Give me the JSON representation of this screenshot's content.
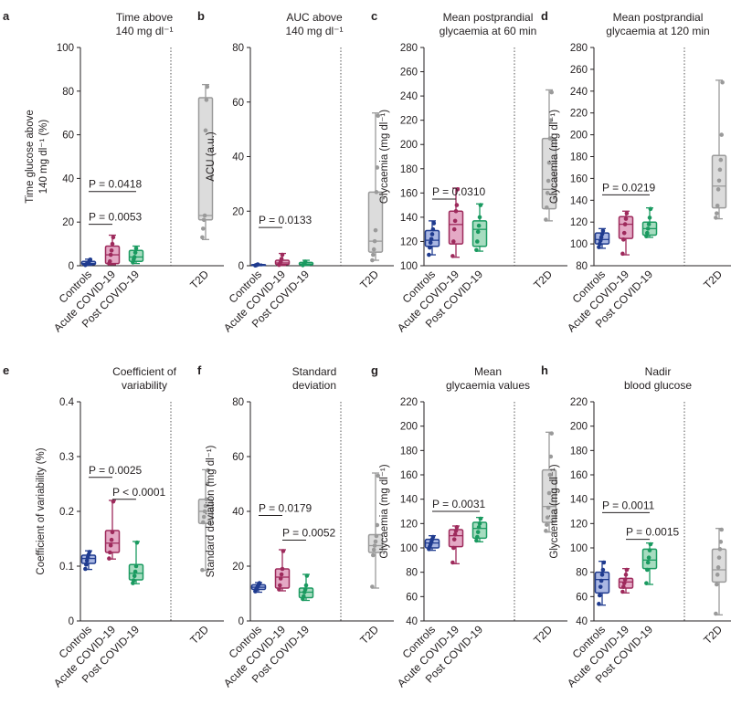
{
  "colors": {
    "controls": "#1f3b8f",
    "controls_fill": "#a9b7e3",
    "acute": "#9e2a5c",
    "acute_fill": "#e4a9c5",
    "post": "#1a9a60",
    "post_fill": "#a7dcc0",
    "t2d": "#9a9a9a",
    "t2d_fill": "#dcdcdc",
    "axis": "#231f20"
  },
  "categories": [
    "Controls",
    "Acute COVID-19",
    "Post COVID-19",
    "T2D"
  ],
  "chart_data": [
    {
      "id": "a",
      "type": "box",
      "panel_label": "a",
      "title": [
        "Time above",
        "140 mg dl⁻¹"
      ],
      "ylabel": [
        "Time glucose above",
        "140 mg dl⁻¹ (%)"
      ],
      "ylim": [
        0,
        100
      ],
      "yticks": [
        0,
        20,
        40,
        60,
        80,
        100
      ],
      "boxes": [
        {
          "min": 0.2,
          "q1": 0.5,
          "median": 1.0,
          "q3": 2.0,
          "max": 3.0,
          "points": [
            0.3,
            0.6,
            0.9,
            1.2,
            1.6,
            2.2,
            2.8
          ]
        },
        {
          "min": 0.5,
          "q1": 1.0,
          "median": 5.0,
          "q3": 9.0,
          "max": 14.0,
          "points": [
            1,
            2,
            5,
            7,
            10,
            13
          ]
        },
        {
          "min": 1.0,
          "q1": 2.0,
          "median": 4.0,
          "q3": 7.0,
          "max": 9.0,
          "points": [
            1.5,
            3,
            4,
            6,
            8
          ]
        },
        {
          "min": 12.0,
          "q1": 21.0,
          "median": 23.0,
          "q3": 77.0,
          "max": 83.0,
          "points": [
            13,
            17,
            21,
            23,
            62,
            76,
            82
          ]
        }
      ],
      "annotations": [
        {
          "text": "P = 0.0418",
          "from": 0,
          "to": 2,
          "y": 34
        },
        {
          "text": "P = 0.0053",
          "from": 0,
          "to": 1,
          "y": 19
        }
      ]
    },
    {
      "id": "b",
      "type": "box",
      "panel_label": "b",
      "title": [
        "AUC above",
        "140 mg dl⁻¹"
      ],
      "ylabel": [
        "ACU (a.u.)"
      ],
      "ylim": [
        0,
        80
      ],
      "yticks": [
        0,
        20,
        40,
        60,
        80
      ],
      "boxes": [
        {
          "min": 0.0,
          "q1": 0.1,
          "median": 0.2,
          "q3": 0.4,
          "max": 0.6,
          "points": [
            0.1,
            0.2,
            0.3,
            0.5
          ]
        },
        {
          "min": 0.1,
          "q1": 0.4,
          "median": 1.0,
          "q3": 2.0,
          "max": 4.5,
          "points": [
            0.3,
            0.8,
            1.5,
            2.5,
            4.0
          ]
        },
        {
          "min": 0.1,
          "q1": 0.3,
          "median": 0.6,
          "q3": 1.2,
          "max": 2.0,
          "points": [
            0.2,
            0.5,
            0.9,
            1.5
          ]
        },
        {
          "min": 2.0,
          "q1": 5.0,
          "median": 9.0,
          "q3": 27.0,
          "max": 56.0,
          "points": [
            2,
            4,
            6,
            9,
            13,
            27,
            36,
            55
          ]
        }
      ],
      "annotations": [
        {
          "text": "P = 0.0133",
          "from": 0,
          "to": 1,
          "y": 14
        }
      ]
    },
    {
      "id": "c",
      "type": "box",
      "panel_label": "c",
      "title": [
        "Mean postprandial",
        "glycaemia at 60 min"
      ],
      "ylabel": [
        "Glycaemia (mg dl⁻¹)"
      ],
      "ylim": [
        100,
        280
      ],
      "yticks": [
        100,
        120,
        140,
        160,
        180,
        200,
        220,
        240,
        260,
        280
      ],
      "boxes": [
        {
          "min": 109,
          "q1": 116,
          "median": 121,
          "q3": 129,
          "max": 137,
          "points": [
            109,
            115,
            119,
            122,
            126,
            130,
            135
          ]
        },
        {
          "min": 107,
          "q1": 118,
          "median": 134,
          "q3": 145,
          "max": 164,
          "points": [
            108,
            120,
            130,
            137,
            145,
            150,
            163
          ]
        },
        {
          "min": 112,
          "q1": 116,
          "median": 130,
          "q3": 137,
          "max": 151,
          "points": [
            113,
            120,
            128,
            133,
            140,
            150
          ]
        },
        {
          "min": 137,
          "q1": 147,
          "median": 163,
          "q3": 205,
          "max": 245,
          "points": [
            138,
            148,
            160,
            170,
            185,
            205,
            220,
            243
          ]
        }
      ],
      "annotations": [
        {
          "text": "P = 0.0310",
          "from": 0,
          "to": 1,
          "y": 155
        }
      ]
    },
    {
      "id": "d",
      "type": "box",
      "panel_label": "d",
      "title": [
        "Mean postprandial",
        "glycaemia at 120 min"
      ],
      "ylabel": [
        "Glycaemia (mg dl⁻¹)"
      ],
      "ylim": [
        80,
        280
      ],
      "yticks": [
        80,
        100,
        120,
        140,
        160,
        180,
        200,
        220,
        240,
        260,
        280
      ],
      "boxes": [
        {
          "min": 96,
          "q1": 100,
          "median": 104,
          "q3": 110,
          "max": 114,
          "points": [
            97,
            100,
            103,
            106,
            109,
            112
          ]
        },
        {
          "min": 90,
          "q1": 105,
          "median": 118,
          "q3": 125,
          "max": 130,
          "points": [
            91,
            104,
            110,
            118,
            123,
            128
          ]
        },
        {
          "min": 106,
          "q1": 108,
          "median": 114,
          "q3": 120,
          "max": 133,
          "points": [
            107,
            110,
            114,
            118,
            124,
            132
          ]
        },
        {
          "min": 123,
          "q1": 133,
          "median": 153,
          "q3": 181,
          "max": 250,
          "points": [
            124,
            128,
            135,
            150,
            158,
            168,
            177,
            200,
            248
          ]
        }
      ],
      "annotations": [
        {
          "text": "P = 0.0219",
          "from": 0,
          "to": 2,
          "y": 145
        }
      ]
    },
    {
      "id": "e",
      "type": "box",
      "panel_label": "e",
      "title": [
        "Coefficient of",
        "variability"
      ],
      "ylabel": [
        "Coefficient of variability (%)"
      ],
      "ylim": [
        0,
        0.4
      ],
      "yticks": [
        0,
        0.1,
        0.2,
        0.3,
        0.4
      ],
      "ytick_labels": [
        "0",
        "0.1",
        "0.2",
        "0.3",
        "0.4"
      ],
      "boxes": [
        {
          "min": 0.094,
          "q1": 0.105,
          "median": 0.114,
          "q3": 0.12,
          "max": 0.128,
          "points": [
            0.095,
            0.103,
            0.11,
            0.116,
            0.121,
            0.126
          ]
        },
        {
          "min": 0.113,
          "q1": 0.125,
          "median": 0.142,
          "q3": 0.165,
          "max": 0.22,
          "points": [
            0.114,
            0.125,
            0.138,
            0.148,
            0.162,
            0.218
          ]
        },
        {
          "min": 0.068,
          "q1": 0.075,
          "median": 0.087,
          "q3": 0.103,
          "max": 0.145,
          "points": [
            0.069,
            0.074,
            0.082,
            0.09,
            0.1,
            0.143
          ]
        },
        {
          "min": 0.092,
          "q1": 0.178,
          "median": 0.2,
          "q3": 0.222,
          "max": 0.276,
          "points": [
            0.093,
            0.18,
            0.19,
            0.2,
            0.21,
            0.222,
            0.25,
            0.275
          ]
        }
      ],
      "annotations": [
        {
          "text": "P = 0.0025",
          "from": 0,
          "to": 1,
          "y": 0.262
        },
        {
          "text": "P < 0.0001",
          "from": 1,
          "to": 2,
          "y": 0.222
        }
      ]
    },
    {
      "id": "f",
      "type": "box",
      "panel_label": "f",
      "title": [
        "Standard",
        "deviation"
      ],
      "ylabel": [
        "Standard deviation (mg dl⁻¹)"
      ],
      "ylim": [
        0,
        80
      ],
      "yticks": [
        0,
        20,
        40,
        60,
        80
      ],
      "boxes": [
        {
          "min": 10.5,
          "q1": 11.5,
          "median": 12.3,
          "q3": 13.2,
          "max": 14.0,
          "points": [
            10.8,
            11.5,
            12.1,
            12.6,
            13.2,
            13.8
          ]
        },
        {
          "min": 11.0,
          "q1": 12.0,
          "median": 16.0,
          "q3": 19.0,
          "max": 26.0,
          "points": [
            11.5,
            13,
            15.5,
            17,
            19,
            25.5
          ]
        },
        {
          "min": 7.5,
          "q1": 8.5,
          "median": 10.5,
          "q3": 12.0,
          "max": 17.0,
          "points": [
            8,
            9,
            10.5,
            11.5,
            13,
            16.5
          ]
        },
        {
          "min": 12.0,
          "q1": 25.0,
          "median": 27.5,
          "q3": 31.5,
          "max": 54.0,
          "points": [
            12.5,
            24,
            26,
            27.5,
            29,
            31,
            35,
            53
          ]
        }
      ],
      "annotations": [
        {
          "text": "P = 0.0179",
          "from": 0,
          "to": 1,
          "y": 38.5
        },
        {
          "text": "P = 0.0052",
          "from": 1,
          "to": 2,
          "y": 29.5
        }
      ]
    },
    {
      "id": "g",
      "type": "box",
      "panel_label": "g",
      "title": [
        "Mean",
        "glycaemia values"
      ],
      "ylabel": [
        "Glycaemia (mg dl⁻¹)"
      ],
      "ylim": [
        40,
        220
      ],
      "yticks": [
        40,
        60,
        80,
        100,
        120,
        140,
        160,
        180,
        200,
        220
      ],
      "boxes": [
        {
          "min": 98,
          "q1": 100,
          "median": 104,
          "q3": 107,
          "max": 110,
          "points": [
            99,
            101,
            103,
            105,
            107,
            109
          ]
        },
        {
          "min": 87,
          "q1": 101,
          "median": 110,
          "q3": 115,
          "max": 118,
          "points": [
            88,
            100,
            107,
            111,
            114,
            117
          ]
        },
        {
          "min": 105,
          "q1": 108,
          "median": 116,
          "q3": 121,
          "max": 125,
          "points": [
            106,
            109,
            113,
            117,
            120,
            124
          ]
        },
        {
          "min": 113,
          "q1": 121,
          "median": 134,
          "q3": 164,
          "max": 195,
          "points": [
            114,
            119,
            125,
            133,
            145,
            160,
            175,
            194
          ]
        }
      ],
      "annotations": [
        {
          "text": "P = 0.0031",
          "from": 0,
          "to": 2,
          "y": 130
        }
      ]
    },
    {
      "id": "h",
      "type": "box",
      "panel_label": "h",
      "title": [
        "Nadir",
        "blood glucose"
      ],
      "ylabel": [
        "Glycaemia (mg dl⁻¹)"
      ],
      "ylim": [
        40,
        220
      ],
      "yticks": [
        40,
        60,
        80,
        100,
        120,
        140,
        160,
        180,
        200,
        220
      ],
      "boxes": [
        {
          "min": 53,
          "q1": 63,
          "median": 74,
          "q3": 80,
          "max": 89,
          "points": [
            54,
            61,
            68,
            73,
            78,
            82,
            88
          ]
        },
        {
          "min": 63,
          "q1": 67,
          "median": 72,
          "q3": 75,
          "max": 83,
          "points": [
            64,
            68,
            71,
            74,
            78,
            82
          ]
        },
        {
          "min": 70,
          "q1": 83,
          "median": 90,
          "q3": 99,
          "max": 104,
          "points": [
            71,
            82,
            88,
            92,
            98,
            103
          ]
        },
        {
          "min": 45,
          "q1": 72,
          "median": 82,
          "q3": 99,
          "max": 116,
          "points": [
            46,
            70,
            78,
            84,
            92,
            99,
            105,
            115
          ]
        }
      ],
      "annotations": [
        {
          "text": "P = 0.0011",
          "from": 0,
          "to": 2,
          "y": 129
        },
        {
          "text": "P = 0.0015",
          "from": 1,
          "to": 2,
          "y": 107
        }
      ]
    }
  ]
}
